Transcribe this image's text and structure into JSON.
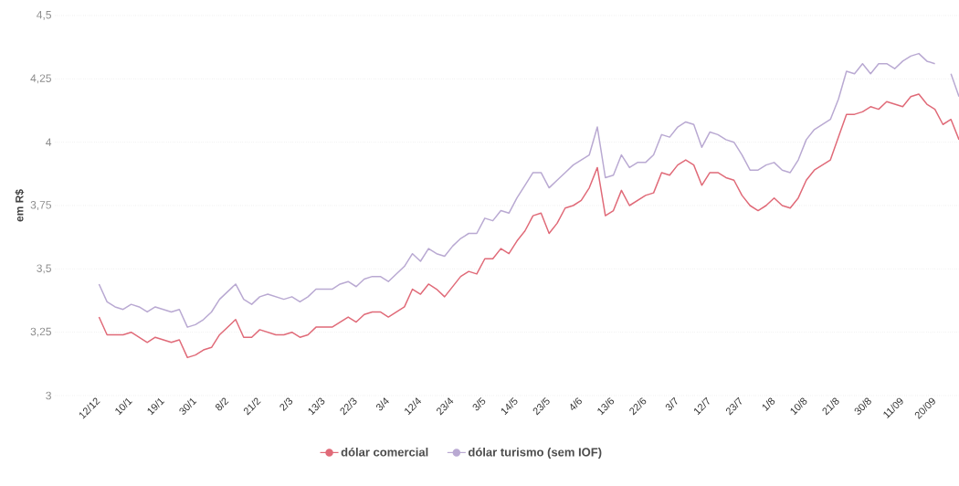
{
  "chart_data": {
    "type": "line",
    "ylabel": "em R$",
    "categories": [
      "12/12",
      null,
      null,
      null,
      "10/1",
      null,
      null,
      null,
      "19/1",
      null,
      null,
      null,
      "30/1",
      null,
      null,
      null,
      "8/2",
      null,
      null,
      null,
      "21/2",
      null,
      null,
      null,
      "2/3",
      null,
      null,
      null,
      "13/3",
      null,
      null,
      null,
      "22/3",
      null,
      null,
      null,
      "3/4",
      null,
      null,
      null,
      "12/4",
      null,
      null,
      null,
      "23/4",
      null,
      null,
      null,
      "3/5",
      null,
      null,
      null,
      "14/5",
      null,
      null,
      null,
      "23/5",
      null,
      null,
      null,
      "4/6",
      null,
      null,
      null,
      "13/6",
      null,
      null,
      null,
      "22/6",
      null,
      null,
      null,
      "3/7",
      null,
      null,
      null,
      "12/7",
      null,
      null,
      null,
      "23/7",
      null,
      null,
      null,
      "1/8",
      null,
      null,
      null,
      "10/8",
      null,
      null,
      null,
      "21/8",
      null,
      null,
      null,
      "30/8",
      null,
      null,
      null,
      "11/09",
      null,
      null,
      null,
      "20/09",
      null,
      null,
      null
    ],
    "series": [
      {
        "name": "dólar comercial",
        "color": "#e06a78",
        "values": [
          3.31,
          3.24,
          3.24,
          3.24,
          3.25,
          3.23,
          3.21,
          3.23,
          3.22,
          3.21,
          3.22,
          3.15,
          3.16,
          3.18,
          3.19,
          3.24,
          3.27,
          3.3,
          3.23,
          3.23,
          3.26,
          3.25,
          3.24,
          3.24,
          3.25,
          3.23,
          3.24,
          3.27,
          3.27,
          3.27,
          3.29,
          3.31,
          3.29,
          3.32,
          3.33,
          3.33,
          3.31,
          3.33,
          3.35,
          3.42,
          3.4,
          3.44,
          3.42,
          3.39,
          3.43,
          3.47,
          3.49,
          3.48,
          3.54,
          3.54,
          3.58,
          3.56,
          3.61,
          3.65,
          3.71,
          3.72,
          3.64,
          3.68,
          3.74,
          3.75,
          3.77,
          3.82,
          3.9,
          3.71,
          3.73,
          3.81,
          3.75,
          3.77,
          3.79,
          3.8,
          3.88,
          3.87,
          3.91,
          3.93,
          3.91,
          3.83,
          3.88,
          3.88,
          3.86,
          3.85,
          3.79,
          3.75,
          3.73,
          3.75,
          3.78,
          3.75,
          3.74,
          3.78,
          3.85,
          3.89,
          3.91,
          3.93,
          4.02,
          4.11,
          4.11,
          4.12,
          4.14,
          4.13,
          4.16,
          4.15,
          4.14,
          4.18,
          4.19,
          4.15,
          4.13,
          4.07,
          4.09,
          4.01
        ]
      },
      {
        "name": "dólar turismo (sem IOF)",
        "color": "#b9a9d2",
        "values": [
          3.44,
          3.37,
          3.35,
          3.34,
          3.36,
          3.35,
          3.33,
          3.35,
          3.34,
          3.33,
          3.34,
          3.27,
          3.28,
          3.3,
          3.33,
          3.38,
          3.41,
          3.44,
          3.38,
          3.36,
          3.39,
          3.4,
          3.39,
          3.38,
          3.39,
          3.37,
          3.39,
          3.42,
          3.42,
          3.42,
          3.44,
          3.45,
          3.43,
          3.46,
          3.47,
          3.47,
          3.45,
          3.48,
          3.51,
          3.56,
          3.53,
          3.58,
          3.56,
          3.55,
          3.59,
          3.62,
          3.64,
          3.64,
          3.7,
          3.69,
          3.73,
          3.72,
          3.78,
          3.83,
          3.88,
          3.88,
          3.82,
          3.85,
          3.88,
          3.91,
          3.93,
          3.95,
          4.06,
          3.86,
          3.87,
          3.95,
          3.9,
          3.92,
          3.92,
          3.95,
          4.03,
          4.02,
          4.06,
          4.08,
          4.07,
          3.98,
          4.04,
          4.03,
          4.01,
          4.0,
          3.95,
          3.89,
          3.89,
          3.91,
          3.92,
          3.89,
          3.88,
          3.93,
          4.01,
          4.05,
          4.07,
          4.09,
          4.17,
          4.28,
          4.27,
          4.31,
          4.27,
          4.31,
          4.31,
          4.29,
          4.32,
          4.34,
          4.35,
          4.32,
          4.31,
          null,
          4.27,
          4.18
        ]
      }
    ],
    "ylim": [
      3,
      4.5
    ],
    "yticks": [
      3,
      {
        "value": 3.25,
        "label": "3,25"
      },
      {
        "value": 3.5,
        "label": "3,5"
      },
      {
        "value": 3.75,
        "label": "3,75"
      },
      4,
      {
        "value": 4.25,
        "label": "4,25"
      },
      {
        "value": 4.5,
        "label": "4,5"
      }
    ],
    "grid": "y",
    "legend": "bottom",
    "line_style": "solid"
  }
}
